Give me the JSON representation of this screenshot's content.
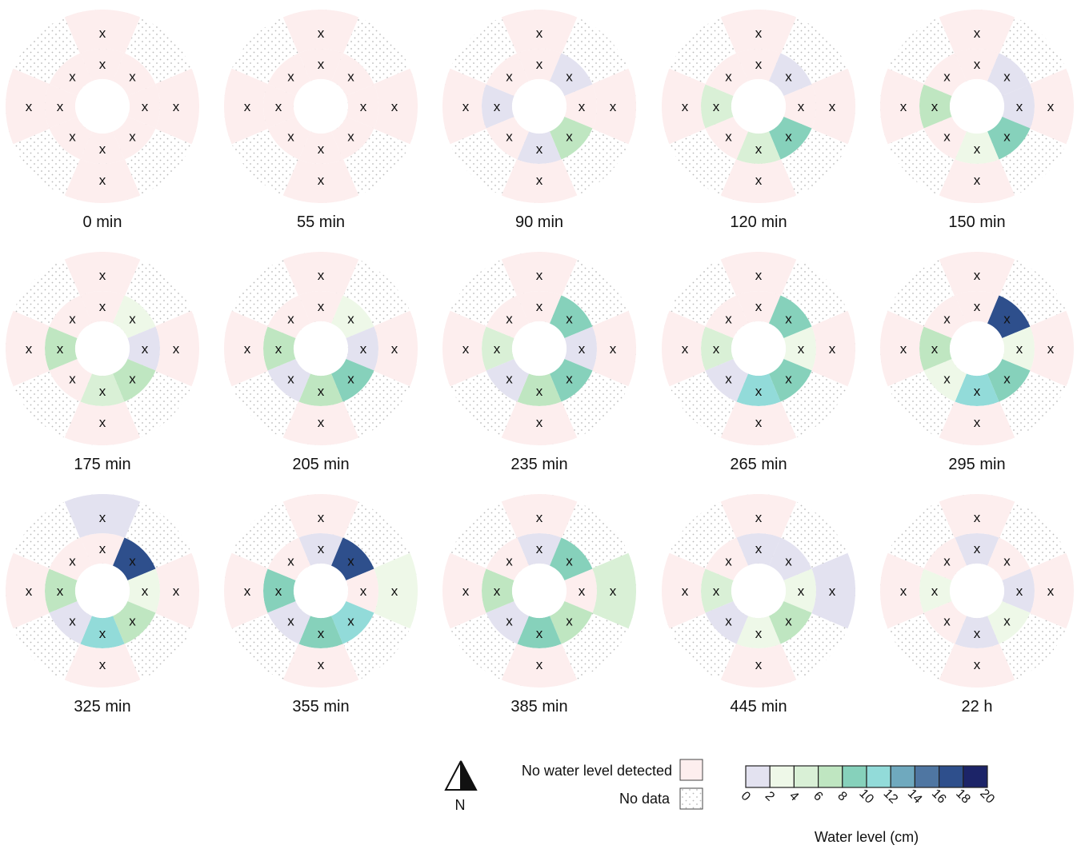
{
  "colors": {
    "no_water": "#fdeeee",
    "no_data_dot": "#b9b9b9",
    "highlight_label": "#1a1adf",
    "default_label": "#111111"
  },
  "sectors": [
    "N",
    "NE",
    "E",
    "SE",
    "S",
    "SW",
    "W",
    "NW"
  ],
  "panels": [
    {
      "label": "0 min",
      "highlight": true,
      "inner": {
        "N": null,
        "NE": null,
        "E": null,
        "SE": null,
        "S": null,
        "SW": null,
        "W": null,
        "NW": null
      },
      "outer": {
        "N": null,
        "E": null,
        "S": null,
        "W": null
      }
    },
    {
      "label": "55 min",
      "highlight": false,
      "inner": {
        "N": null,
        "NE": null,
        "E": null,
        "SE": null,
        "S": null,
        "SW": null,
        "W": null,
        "NW": null
      },
      "outer": {
        "N": null,
        "E": null,
        "S": null,
        "W": null
      }
    },
    {
      "label": "90 min",
      "highlight": false,
      "inner": {
        "N": null,
        "NE": "0-2",
        "E": null,
        "SE": "6-8",
        "S": "0-2",
        "SW": null,
        "W": "0-2",
        "NW": null
      },
      "outer": {
        "N": null,
        "E": null,
        "S": null,
        "W": null
      }
    },
    {
      "label": "120 min",
      "highlight": false,
      "inner": {
        "N": null,
        "NE": "0-2",
        "E": null,
        "SE": "8-10",
        "S": "4-6",
        "SW": null,
        "W": "4-6",
        "NW": null
      },
      "outer": {
        "N": null,
        "E": null,
        "S": null,
        "W": null
      }
    },
    {
      "label": "150 min",
      "highlight": false,
      "inner": {
        "N": null,
        "NE": "0-2",
        "E": "0-2",
        "SE": "8-10",
        "S": "2-4",
        "SW": null,
        "W": "6-8",
        "NW": null
      },
      "outer": {
        "N": null,
        "E": null,
        "S": null,
        "W": null
      }
    },
    {
      "label": "175 min",
      "highlight": false,
      "inner": {
        "N": null,
        "NE": "2-4",
        "E": "0-2",
        "SE": "6-8",
        "S": "4-6",
        "SW": null,
        "W": "6-8",
        "NW": null
      },
      "outer": {
        "N": null,
        "E": null,
        "S": null,
        "W": null
      }
    },
    {
      "label": "205 min",
      "highlight": false,
      "inner": {
        "N": null,
        "NE": "2-4",
        "E": "0-2",
        "SE": "8-10",
        "S": "6-8",
        "SW": "0-2",
        "W": "6-8",
        "NW": null
      },
      "outer": {
        "N": null,
        "E": null,
        "S": null,
        "W": null
      }
    },
    {
      "label": "235 min",
      "highlight": false,
      "inner": {
        "N": null,
        "NE": "8-10",
        "E": "0-2",
        "SE": "8-10",
        "S": "6-8",
        "SW": "0-2",
        "W": "4-6",
        "NW": null
      },
      "outer": {
        "N": null,
        "E": null,
        "S": null,
        "W": null
      }
    },
    {
      "label": "265 min",
      "highlight": false,
      "inner": {
        "N": null,
        "NE": "8-10",
        "E": "2-4",
        "SE": "8-10",
        "S": "10-12",
        "SW": "0-2",
        "W": "4-6",
        "NW": null
      },
      "outer": {
        "N": null,
        "E": null,
        "S": null,
        "W": null
      }
    },
    {
      "label": "295 min",
      "highlight": false,
      "inner": {
        "N": null,
        "NE": "16-18",
        "E": "2-4",
        "SE": "8-10",
        "S": "10-12",
        "SW": "2-4",
        "W": "6-8",
        "NW": null
      },
      "outer": {
        "N": null,
        "E": null,
        "S": null,
        "W": null
      }
    },
    {
      "label": "325 min",
      "highlight": false,
      "inner": {
        "N": null,
        "NE": "16-18",
        "E": "2-4",
        "SE": "6-8",
        "S": "10-12",
        "SW": "0-2",
        "W": "6-8",
        "NW": null
      },
      "outer": {
        "N": "0-2",
        "E": null,
        "S": null,
        "W": null
      }
    },
    {
      "label": "355 min",
      "highlight": false,
      "inner": {
        "N": "0-2",
        "NE": "16-18",
        "E": null,
        "SE": "10-12",
        "S": "8-10",
        "SW": "0-2",
        "W": "8-10",
        "NW": null
      },
      "outer": {
        "N": null,
        "E": "2-4",
        "S": null,
        "W": null
      }
    },
    {
      "label": "385 min",
      "highlight": true,
      "inner": {
        "N": "0-2",
        "NE": "8-10",
        "E": null,
        "SE": "6-8",
        "S": "8-10",
        "SW": "0-2",
        "W": "6-8",
        "NW": null
      },
      "outer": {
        "N": null,
        "E": "4-6",
        "S": null,
        "W": null
      }
    },
    {
      "label": "445 min",
      "highlight": false,
      "inner": {
        "N": "0-2",
        "NE": "0-2",
        "E": "2-4",
        "SE": "6-8",
        "S": "2-4",
        "SW": "0-2",
        "W": "4-6",
        "NW": null
      },
      "outer": {
        "N": null,
        "E": "0-2",
        "S": null,
        "W": null
      }
    },
    {
      "label": "22 h",
      "highlight": false,
      "inner": {
        "N": "0-2",
        "NE": null,
        "E": "0-2",
        "SE": "2-4",
        "S": "0-2",
        "SW": null,
        "W": "2-4",
        "NW": null
      },
      "outer": {
        "N": null,
        "E": null,
        "S": null,
        "W": null
      }
    }
  ],
  "legend": {
    "north_label": "N",
    "no_water_label": "No water level detected",
    "no_data_label": "No data",
    "scale_title": "Water level (cm)",
    "scale_ticks": [
      "0",
      "2",
      "4",
      "6",
      "8",
      "10",
      "12",
      "14",
      "16",
      "18",
      "20"
    ],
    "scale_bins": [
      {
        "range": "0-2",
        "color": "#e3e2f0"
      },
      {
        "range": "2-4",
        "color": "#eef8e8"
      },
      {
        "range": "4-6",
        "color": "#d9f0d6"
      },
      {
        "range": "6-8",
        "color": "#bfe6c1"
      },
      {
        "range": "8-10",
        "color": "#86d1bb"
      },
      {
        "range": "10-12",
        "color": "#92dbd9"
      },
      {
        "range": "12-14",
        "color": "#6fa9be"
      },
      {
        "range": "14-16",
        "color": "#4f76a2"
      },
      {
        "range": "16-18",
        "color": "#2e4f8c"
      },
      {
        "range": "18-20",
        "color": "#1c2468"
      }
    ]
  }
}
